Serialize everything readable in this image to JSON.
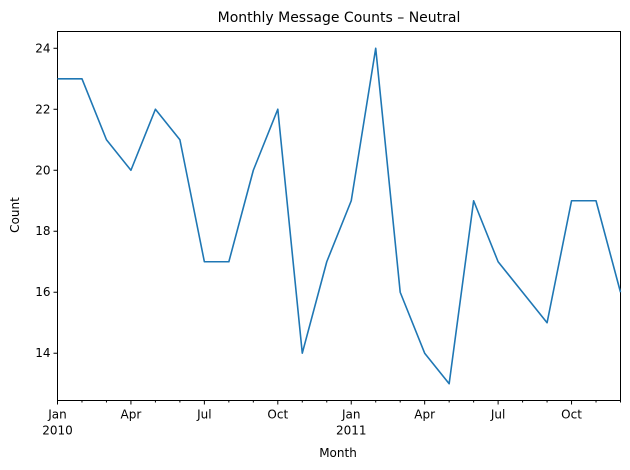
{
  "chart_data": {
    "type": "line",
    "title": "Monthly Message Counts – Neutral",
    "xlabel": "Month",
    "ylabel": "Count",
    "grid": false,
    "x": [
      "2010-01",
      "2010-02",
      "2010-03",
      "2010-04",
      "2010-05",
      "2010-06",
      "2010-07",
      "2010-08",
      "2010-09",
      "2010-10",
      "2010-11",
      "2010-12",
      "2011-01",
      "2011-02",
      "2011-03",
      "2011-04",
      "2011-05",
      "2011-06",
      "2011-07",
      "2011-08",
      "2011-09",
      "2011-10",
      "2011-11",
      "2011-12"
    ],
    "series": [
      {
        "color": "#1f77b4",
        "values": [
          23,
          23,
          21,
          20,
          22,
          21,
          17,
          17,
          20,
          22,
          14,
          17,
          19,
          24,
          16,
          14,
          13,
          19,
          17,
          16,
          15,
          19,
          19,
          16
        ]
      }
    ],
    "ylim": [
      12.45,
      24.55
    ],
    "yticks": [
      "14",
      "16",
      "18",
      "20",
      "22",
      "24"
    ],
    "xticks": [
      {
        "month": "2010-01",
        "label": "Jan",
        "sublabel": "2010"
      },
      {
        "month": "2010-04",
        "label": "Apr",
        "sublabel": ""
      },
      {
        "month": "2010-07",
        "label": "Jul",
        "sublabel": ""
      },
      {
        "month": "2010-10",
        "label": "Oct",
        "sublabel": ""
      },
      {
        "month": "2011-01",
        "label": "Jan",
        "sublabel": "2011"
      },
      {
        "month": "2011-04",
        "label": "Apr",
        "sublabel": ""
      },
      {
        "month": "2011-07",
        "label": "Jul",
        "sublabel": ""
      },
      {
        "month": "2011-10",
        "label": "Oct",
        "sublabel": ""
      }
    ]
  }
}
